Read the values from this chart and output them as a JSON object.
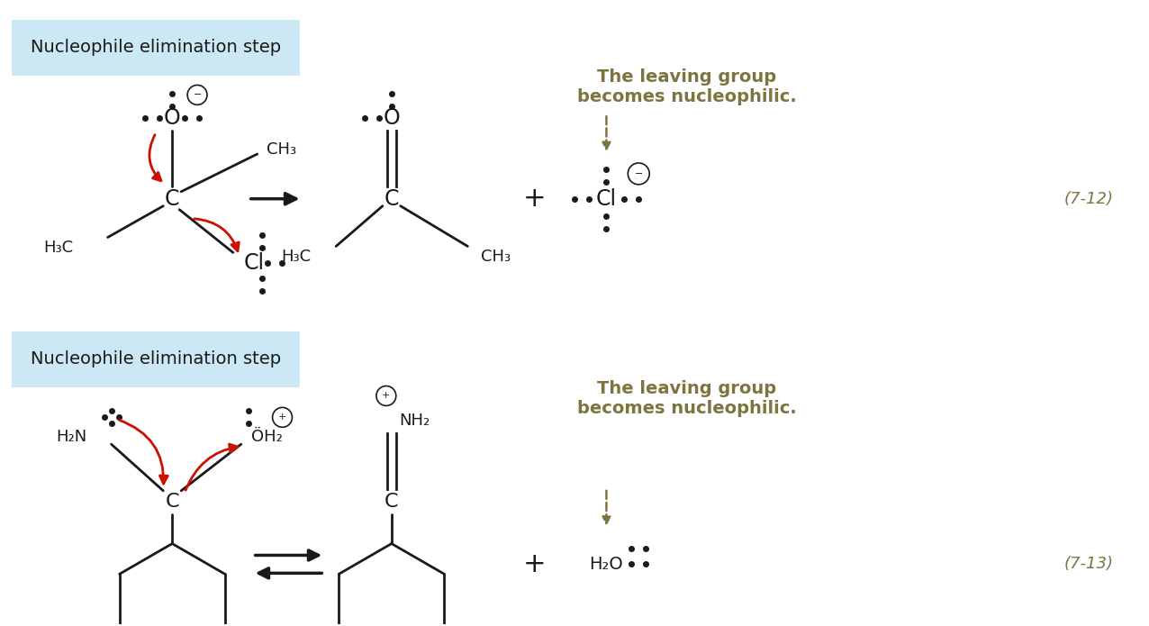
{
  "bg_color": "#ffffff",
  "light_blue_box": "#cce8f4",
  "title_text": "Nucleophile elimination step",
  "olive_color": "#7d7540",
  "red_color": "#cc1100",
  "black_color": "#1a1a1a",
  "rxn_label_1": "(7-12)",
  "rxn_label_2": "(7-13)",
  "leaving_group_text_1": "The leaving group\nbecomes nucleophilic.",
  "leaving_group_text_2": "The leaving group\nbecomes nucleophilic.",
  "fig_width": 12.76,
  "fig_height": 6.95,
  "dpi": 100
}
